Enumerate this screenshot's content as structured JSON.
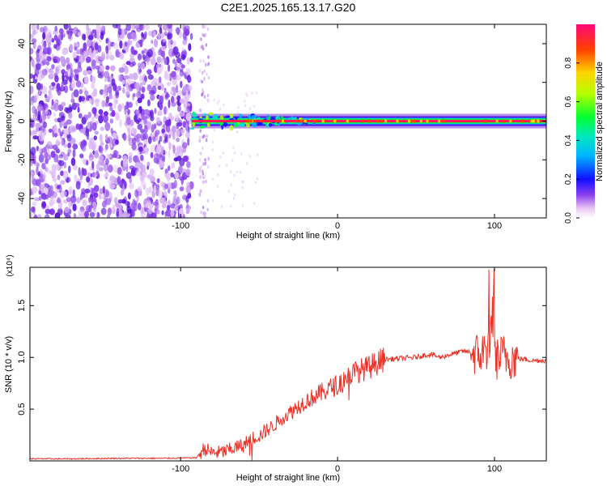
{
  "title": "C2E1.2025.165.13.17.G20",
  "chart_data": [
    {
      "type": "heatmap",
      "xlabel": "Height of straight line (km)",
      "ylabel": "Frequency (Hz)",
      "xlim": [
        -196,
        133
      ],
      "ylim": [
        -50,
        50
      ],
      "xticks": [
        -100,
        0,
        100
      ],
      "xtick_labels": [
        "-100",
        "0",
        "100"
      ],
      "yticks": [
        -40,
        -20,
        0,
        20,
        40
      ],
      "ytick_labels": [
        "-40",
        "-20",
        "0",
        "20",
        "40"
      ],
      "colorbar": {
        "label": "Normalized spectral amplitude",
        "range": [
          0,
          1
        ],
        "ticks": [
          0.0,
          0.2,
          0.4,
          0.6,
          0.8
        ],
        "tick_labels": [
          "0.0",
          "0.2",
          "0.4",
          "0.6",
          "0.8"
        ]
      },
      "noise_region_x": [
        -196,
        -93
      ],
      "signal_line": {
        "x_start": -93,
        "x_end": 133,
        "frequency_hz": 0,
        "peak_amplitude": 1.0
      }
    },
    {
      "type": "line",
      "xlabel": "Height of straight line (km)",
      "ylabel": "SNR (10 * v/v)",
      "y_scale_label": "(x10⁴)",
      "xlim": [
        -196,
        133
      ],
      "ylim": [
        0,
        1.87
      ],
      "xticks": [
        -100,
        0,
        100
      ],
      "xtick_labels": [
        "-100",
        "0",
        "100"
      ],
      "yticks": [
        0.5,
        1.0,
        1.5
      ],
      "ytick_labels": [
        "0.5",
        "1.0",
        "1.5"
      ],
      "series": [
        {
          "color": "#e8352a",
          "x": [
            -196,
            -170,
            -140,
            -110,
            -90,
            -85,
            -80,
            -75,
            -70,
            -65,
            -60,
            -55,
            -50,
            -45,
            -40,
            -35,
            -30,
            -25,
            -20,
            -15,
            -10,
            -5,
            0,
            5,
            10,
            15,
            20,
            25,
            30,
            40,
            50,
            55,
            60,
            65,
            70,
            75,
            80,
            85,
            90,
            95,
            98,
            100,
            102,
            105,
            110,
            115,
            120,
            125,
            133
          ],
          "y": [
            0.02,
            0.02,
            0.025,
            0.025,
            0.03,
            0.12,
            0.08,
            0.08,
            0.1,
            0.13,
            0.15,
            0.22,
            0.24,
            0.3,
            0.35,
            0.42,
            0.47,
            0.53,
            0.58,
            0.62,
            0.66,
            0.7,
            0.74,
            0.8,
            0.85,
            0.88,
            0.9,
            0.95,
            0.98,
            0.99,
            1.0,
            1.02,
            1.03,
            1.0,
            1.02,
            1.04,
            1.06,
            1.05,
            1.02,
            1.08,
            1.2,
            1.05,
            0.98,
            1.02,
            1.0,
            0.99,
            0.98,
            0.97,
            0.97
          ]
        }
      ]
    }
  ]
}
